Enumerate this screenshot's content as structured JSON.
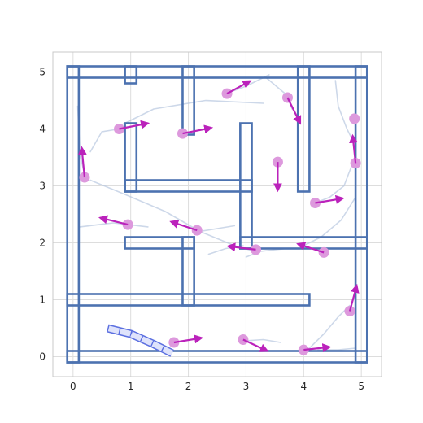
{
  "plot": {
    "xlim": [
      -0.35,
      5.35
    ],
    "ylim": [
      -0.35,
      5.35
    ],
    "grid": true,
    "x_ticks": [
      {
        "value": 0,
        "label": "0"
      },
      {
        "value": 1,
        "label": "1"
      },
      {
        "value": 2,
        "label": "2"
      },
      {
        "value": 3,
        "label": "3"
      },
      {
        "value": 4,
        "label": "4"
      },
      {
        "value": 5,
        "label": "5"
      }
    ],
    "y_ticks": [
      {
        "value": 0,
        "label": "0"
      },
      {
        "value": 1,
        "label": "1"
      },
      {
        "value": 2,
        "label": "2"
      },
      {
        "value": 3,
        "label": "3"
      },
      {
        "value": 4,
        "label": "4"
      },
      {
        "value": 5,
        "label": "5"
      }
    ]
  },
  "colors": {
    "wall": "#4c72b0",
    "agent": "#dd99dd",
    "arrow": "#bb22bb",
    "trail": "#b8c8e0",
    "robot": "#5b6fe0",
    "grid": "#dddddd",
    "frame": "#c8c8c8"
  },
  "walls": [
    {
      "x": [
        0.0,
        5.0
      ],
      "y": [
        5.0,
        5.0
      ]
    },
    {
      "x": [
        0.0,
        5.0
      ],
      "y": [
        0.0,
        0.0
      ]
    },
    {
      "x": [
        0.0,
        0.0
      ],
      "y": [
        0.0,
        5.0
      ]
    },
    {
      "x": [
        5.0,
        5.0
      ],
      "y": [
        0.0,
        5.0
      ]
    },
    {
      "x": [
        1.0,
        1.0
      ],
      "y": [
        5.0,
        4.9
      ]
    },
    {
      "x": [
        2.0,
        2.0
      ],
      "y": [
        5.0,
        4.0
      ]
    },
    {
      "x": [
        4.0,
        4.0
      ],
      "y": [
        5.0,
        3.0
      ]
    },
    {
      "x": [
        1.0,
        1.0
      ],
      "y": [
        4.0,
        3.0
      ]
    },
    {
      "x": [
        1.0,
        3.0
      ],
      "y": [
        3.0,
        3.0
      ]
    },
    {
      "x": [
        3.0,
        3.0
      ],
      "y": [
        4.0,
        2.0
      ]
    },
    {
      "x": [
        3.0,
        5.0
      ],
      "y": [
        2.0,
        2.0
      ]
    },
    {
      "x": [
        1.0,
        2.0
      ],
      "y": [
        2.0,
        2.0
      ]
    },
    {
      "x": [
        2.0,
        2.0
      ],
      "y": [
        2.0,
        1.0
      ]
    },
    {
      "x": [
        0.0,
        4.0
      ],
      "y": [
        1.0,
        1.0
      ]
    }
  ],
  "trails": [
    [
      [
        0.08,
        4.4
      ],
      [
        0.1,
        4.0
      ],
      [
        0.12,
        3.55
      ],
      [
        0.2,
        3.2
      ]
    ],
    [
      [
        0.3,
        3.6
      ],
      [
        0.5,
        3.95
      ],
      [
        0.8,
        4.0
      ]
    ],
    [
      [
        0.8,
        4.05
      ],
      [
        1.4,
        4.35
      ],
      [
        2.3,
        4.5
      ],
      [
        3.3,
        4.45
      ]
    ],
    [
      [
        0.3,
        3.1
      ],
      [
        0.9,
        2.85
      ],
      [
        1.6,
        2.55
      ],
      [
        2.2,
        2.2
      ],
      [
        2.8,
        1.95
      ],
      [
        3.15,
        1.85
      ]
    ],
    [
      [
        0.12,
        2.28
      ],
      [
        0.7,
        2.35
      ],
      [
        1.3,
        2.28
      ]
    ],
    [
      [
        2.2,
        2.2
      ],
      [
        2.5,
        2.25
      ],
      [
        2.8,
        2.3
      ]
    ],
    [
      [
        2.6,
        4.6
      ],
      [
        3.0,
        4.75
      ],
      [
        3.4,
        4.95
      ]
    ],
    [
      [
        3.35,
        4.9
      ],
      [
        3.7,
        4.6
      ],
      [
        3.8,
        4.35
      ]
    ],
    [
      [
        4.55,
        4.85
      ],
      [
        4.6,
        4.4
      ],
      [
        4.75,
        4.0
      ],
      [
        4.85,
        3.8
      ]
    ],
    [
      [
        4.85,
        3.4
      ],
      [
        4.7,
        3.0
      ],
      [
        4.45,
        2.8
      ],
      [
        4.2,
        2.7
      ]
    ],
    [
      [
        4.9,
        2.8
      ],
      [
        4.65,
        2.4
      ],
      [
        4.3,
        2.1
      ],
      [
        4.0,
        1.95
      ]
    ],
    [
      [
        3.0,
        1.75
      ],
      [
        3.25,
        1.85
      ],
      [
        3.7,
        1.9
      ]
    ],
    [
      [
        2.35,
        1.8
      ],
      [
        2.65,
        1.9
      ],
      [
        2.95,
        1.95
      ]
    ],
    [
      [
        4.1,
        0.15
      ],
      [
        4.35,
        0.4
      ],
      [
        4.6,
        0.7
      ],
      [
        4.8,
        0.9
      ]
    ],
    [
      [
        4.25,
        0.12
      ],
      [
        4.6,
        0.12
      ],
      [
        4.9,
        0.15
      ]
    ],
    [
      [
        3.0,
        0.28
      ],
      [
        3.3,
        0.3
      ],
      [
        3.6,
        0.25
      ]
    ]
  ],
  "agents": [
    {
      "x": 0.2,
      "y": 3.15,
      "dx": -0.05,
      "dy": 0.52
    },
    {
      "x": 0.8,
      "y": 4.0,
      "dx": 0.5,
      "dy": 0.1
    },
    {
      "x": 1.9,
      "y": 3.92,
      "dx": 0.5,
      "dy": 0.1
    },
    {
      "x": 2.67,
      "y": 4.62,
      "dx": 0.4,
      "dy": 0.22
    },
    {
      "x": 3.72,
      "y": 4.55,
      "dx": 0.22,
      "dy": -0.45
    },
    {
      "x": 4.88,
      "y": 4.18,
      "dx": 0.0,
      "dy": 0.0
    },
    {
      "x": 3.55,
      "y": 3.42,
      "dx": 0.0,
      "dy": -0.5
    },
    {
      "x": 4.9,
      "y": 3.4,
      "dx": -0.05,
      "dy": 0.48
    },
    {
      "x": 4.2,
      "y": 2.7,
      "dx": 0.48,
      "dy": 0.08
    },
    {
      "x": 0.95,
      "y": 2.32,
      "dx": -0.48,
      "dy": 0.12
    },
    {
      "x": 2.15,
      "y": 2.22,
      "dx": -0.45,
      "dy": 0.15
    },
    {
      "x": 3.17,
      "y": 1.88,
      "dx": -0.48,
      "dy": 0.06
    },
    {
      "x": 4.35,
      "y": 1.83,
      "dx": -0.45,
      "dy": 0.15
    },
    {
      "x": 4.8,
      "y": 0.8,
      "dx": 0.12,
      "dy": 0.45
    },
    {
      "x": 1.75,
      "y": 0.25,
      "dx": 0.48,
      "dy": 0.08
    },
    {
      "x": 2.95,
      "y": 0.3,
      "dx": 0.42,
      "dy": -0.2
    },
    {
      "x": 4.0,
      "y": 0.12,
      "dx": 0.45,
      "dy": 0.05
    }
  ],
  "robot_path": [
    [
      0.6,
      0.5
    ],
    [
      1.0,
      0.4
    ],
    [
      1.4,
      0.22
    ],
    [
      1.72,
      0.06
    ]
  ],
  "robot_stripes": 5
}
